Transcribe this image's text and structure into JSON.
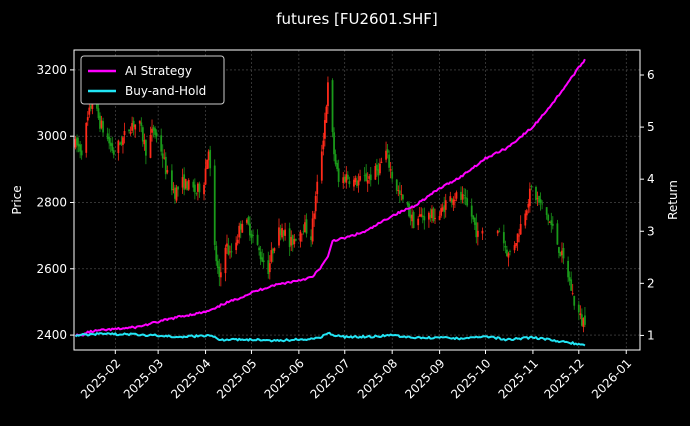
{
  "chart_data": {
    "type": "candlestick+line",
    "title": "futures [FU2601.SHF]",
    "ylabel_left": "Price",
    "ylabel_right": "Return",
    "ylim_left": [
      2355,
      3260
    ],
    "ylim_right": [
      0.72,
      6.48
    ],
    "xlim": [
      "2025-01-05",
      "2026-01-10"
    ],
    "x_ticks": [
      "2025-02",
      "2025-03",
      "2025-04",
      "2025-05",
      "2025-06",
      "2025-07",
      "2025-08",
      "2025-09",
      "2025-10",
      "2025-11",
      "2025-12",
      "2026-01"
    ],
    "y_ticks_left": [
      2400,
      2600,
      2800,
      3000,
      3200
    ],
    "y_ticks_right": [
      1,
      2,
      3,
      4,
      5,
      6
    ],
    "grid": true,
    "legend_position": "top-left",
    "colors": {
      "background": "#000000",
      "up_candle": "#ff2a1a",
      "down_candle": "#1a9a1a",
      "ai_strategy": "#ff00ff",
      "buy_and_hold": "#22e5f5",
      "grid": "#555555",
      "text": "#ffffff"
    },
    "price_path": [
      [
        "2025-01-06",
        2975
      ],
      [
        "2025-01-10",
        2960
      ],
      [
        "2025-01-14",
        3050
      ],
      [
        "2025-01-17",
        3110
      ],
      [
        "2025-01-22",
        3040
      ],
      [
        "2025-01-27",
        2990
      ],
      [
        "2025-01-31",
        2950
      ],
      [
        "2025-02-07",
        3000
      ],
      [
        "2025-02-12",
        3040
      ],
      [
        "2025-02-17",
        3030
      ],
      [
        "2025-02-21",
        2960
      ],
      [
        "2025-02-26",
        3020
      ],
      [
        "2025-03-03",
        2960
      ],
      [
        "2025-03-07",
        2880
      ],
      [
        "2025-03-12",
        2830
      ],
      [
        "2025-03-17",
        2860
      ],
      [
        "2025-03-21",
        2850
      ],
      [
        "2025-03-26",
        2830
      ],
      [
        "2025-03-31",
        2870
      ],
      [
        "2025-04-03",
        2970
      ],
      [
        "2025-04-07",
        2660
      ],
      [
        "2025-04-10",
        2560
      ],
      [
        "2025-04-14",
        2680
      ],
      [
        "2025-04-17",
        2640
      ],
      [
        "2025-04-22",
        2700
      ],
      [
        "2025-04-25",
        2750
      ],
      [
        "2025-04-30",
        2720
      ],
      [
        "2025-05-07",
        2640
      ],
      [
        "2025-05-12",
        2600
      ],
      [
        "2025-05-16",
        2680
      ],
      [
        "2025-05-21",
        2730
      ],
      [
        "2025-05-26",
        2670
      ],
      [
        "2025-05-30",
        2700
      ],
      [
        "2025-06-04",
        2730
      ],
      [
        "2025-06-09",
        2700
      ],
      [
        "2025-06-13",
        2850
      ],
      [
        "2025-06-17",
        3000
      ],
      [
        "2025-06-20",
        3150
      ],
      [
        "2025-06-24",
        2950
      ],
      [
        "2025-06-27",
        2860
      ],
      [
        "2025-07-02",
        2880
      ],
      [
        "2025-07-08",
        2860
      ],
      [
        "2025-07-14",
        2870
      ],
      [
        "2025-07-18",
        2880
      ],
      [
        "2025-07-23",
        2900
      ],
      [
        "2025-07-28",
        2950
      ],
      [
        "2025-08-01",
        2880
      ],
      [
        "2025-08-06",
        2820
      ],
      [
        "2025-08-11",
        2780
      ],
      [
        "2025-08-15",
        2740
      ],
      [
        "2025-08-20",
        2760
      ],
      [
        "2025-08-26",
        2760
      ],
      [
        "2025-09-01",
        2760
      ],
      [
        "2025-09-05",
        2800
      ],
      [
        "2025-09-10",
        2820
      ],
      [
        "2025-09-16",
        2810
      ],
      [
        "2025-09-22",
        2760
      ],
      [
        "2025-09-26",
        2700
      ],
      [
        "2025-10-10",
        2720
      ],
      [
        "2025-10-16",
        2640
      ],
      [
        "2025-10-22",
        2700
      ],
      [
        "2025-10-27",
        2780
      ],
      [
        "2025-10-31",
        2840
      ],
      [
        "2025-11-05",
        2800
      ],
      [
        "2025-11-10",
        2760
      ],
      [
        "2025-11-14",
        2720
      ],
      [
        "2025-11-19",
        2650
      ],
      [
        "2025-11-24",
        2580
      ],
      [
        "2025-11-28",
        2500
      ],
      [
        "2025-12-03",
        2440
      ],
      [
        "2025-12-05",
        2450
      ]
    ],
    "series": [
      {
        "name": "AI Strategy",
        "points": [
          [
            "2025-01-06",
            1.0
          ],
          [
            "2025-01-10",
            1.0
          ],
          [
            "2025-01-14",
            1.06
          ],
          [
            "2025-01-20",
            1.09
          ],
          [
            "2025-02-01",
            1.12
          ],
          [
            "2025-02-15",
            1.16
          ],
          [
            "2025-03-01",
            1.26
          ],
          [
            "2025-03-15",
            1.36
          ],
          [
            "2025-04-01",
            1.45
          ],
          [
            "2025-04-08",
            1.52
          ],
          [
            "2025-04-12",
            1.6
          ],
          [
            "2025-04-20",
            1.68
          ],
          [
            "2025-05-01",
            1.82
          ],
          [
            "2025-05-15",
            1.96
          ],
          [
            "2025-06-01",
            2.06
          ],
          [
            "2025-06-10",
            2.12
          ],
          [
            "2025-06-15",
            2.3
          ],
          [
            "2025-06-20",
            2.5
          ],
          [
            "2025-06-23",
            2.82
          ],
          [
            "2025-06-30",
            2.86
          ],
          [
            "2025-07-15",
            3.0
          ],
          [
            "2025-08-01",
            3.3
          ],
          [
            "2025-08-15",
            3.48
          ],
          [
            "2025-09-01",
            3.82
          ],
          [
            "2025-09-15",
            4.05
          ],
          [
            "2025-10-01",
            4.4
          ],
          [
            "2025-10-15",
            4.6
          ],
          [
            "2025-11-01",
            5.0
          ],
          [
            "2025-11-15",
            5.5
          ],
          [
            "2025-11-25",
            5.9
          ],
          [
            "2025-12-05",
            6.3
          ]
        ]
      },
      {
        "name": "Buy-and-Hold",
        "points": [
          [
            "2025-01-06",
            1.0
          ],
          [
            "2025-01-20",
            1.03
          ],
          [
            "2025-02-10",
            1.02
          ],
          [
            "2025-03-01",
            1.0
          ],
          [
            "2025-03-15",
            0.97
          ],
          [
            "2025-04-04",
            1.0
          ],
          [
            "2025-04-10",
            0.92
          ],
          [
            "2025-05-01",
            0.92
          ],
          [
            "2025-05-15",
            0.9
          ],
          [
            "2025-06-01",
            0.92
          ],
          [
            "2025-06-15",
            0.95
          ],
          [
            "2025-06-20",
            1.05
          ],
          [
            "2025-06-25",
            1.0
          ],
          [
            "2025-07-01",
            0.97
          ],
          [
            "2025-07-20",
            0.98
          ],
          [
            "2025-08-01",
            1.0
          ],
          [
            "2025-08-15",
            0.95
          ],
          [
            "2025-09-01",
            0.96
          ],
          [
            "2025-09-15",
            0.94
          ],
          [
            "2025-10-01",
            0.98
          ],
          [
            "2025-10-15",
            0.92
          ],
          [
            "2025-11-01",
            0.96
          ],
          [
            "2025-11-15",
            0.9
          ],
          [
            "2025-12-05",
            0.82
          ]
        ]
      }
    ]
  }
}
